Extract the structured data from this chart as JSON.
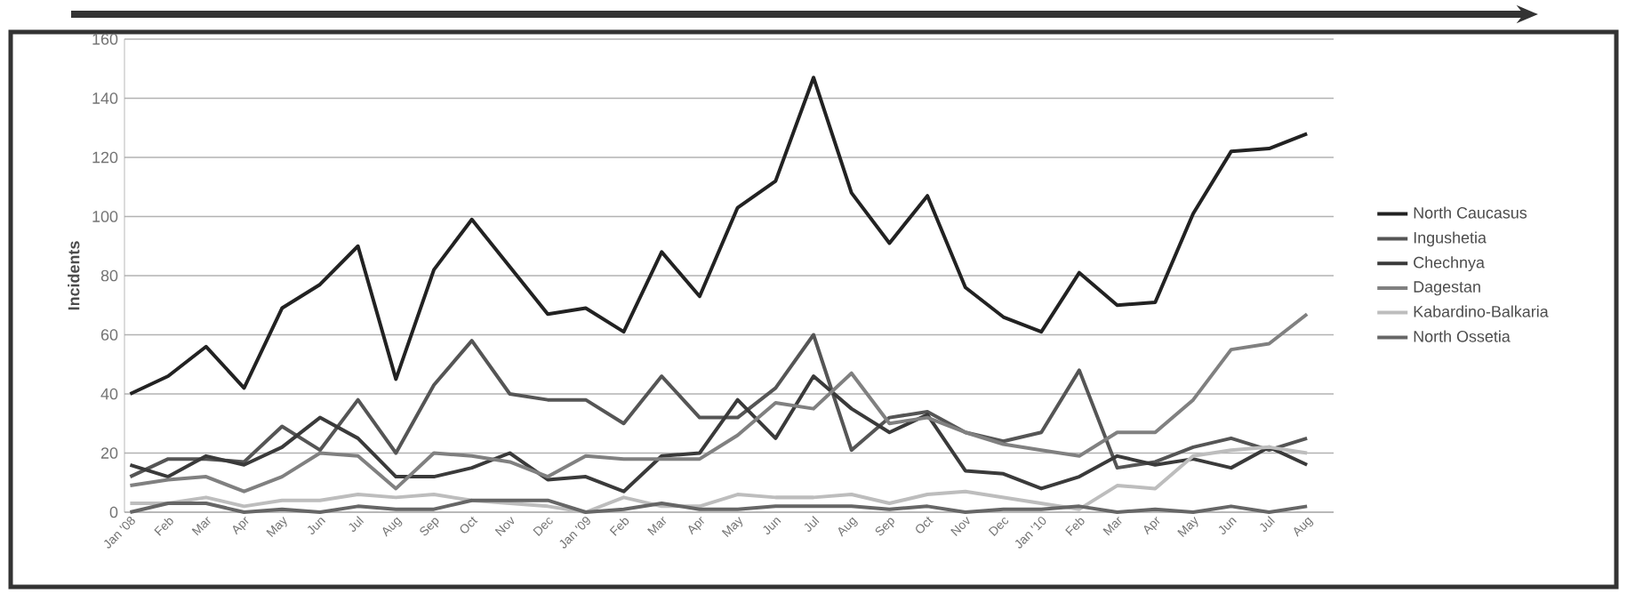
{
  "chart_data": {
    "type": "line",
    "ylabel": "Incidents",
    "categories": [
      "Jan '08",
      "Feb",
      "Mar",
      "Apr",
      "May",
      "Jun",
      "Jul",
      "Aug",
      "Sep",
      "Oct",
      "Nov",
      "Dec",
      "Jan '09",
      "Feb",
      "Mar",
      "Apr",
      "May",
      "Jun",
      "Jul",
      "Aug",
      "Sep",
      "Oct",
      "Nov",
      "Dec",
      "Jan '10",
      "Feb",
      "Mar",
      "Apr",
      "May",
      "Jun",
      "Jul",
      "Aug"
    ],
    "ylim": [
      0,
      160
    ],
    "yticks": [
      0,
      20,
      40,
      60,
      80,
      100,
      120,
      140,
      160
    ],
    "grid": "y",
    "legend": "right",
    "marker": "none",
    "line_style": "solid",
    "series": [
      {
        "name": "North Caucasus",
        "color": "#222222",
        "values": [
          40,
          46,
          56,
          42,
          69,
          77,
          90,
          45,
          82,
          99,
          83,
          67,
          69,
          61,
          88,
          73,
          103,
          112,
          147,
          108,
          91,
          107,
          76,
          66,
          61,
          81,
          70,
          71,
          101,
          122,
          123,
          128
        ]
      },
      {
        "name": "Ingushetia",
        "color": "#555555",
        "values": [
          12,
          18,
          18,
          17,
          29,
          21,
          38,
          20,
          43,
          58,
          40,
          38,
          38,
          30,
          46,
          32,
          32,
          42,
          60,
          21,
          32,
          34,
          27,
          24,
          27,
          48,
          15,
          17,
          22,
          25,
          21,
          25
        ]
      },
      {
        "name": "Chechnya",
        "color": "#3a3a3a",
        "values": [
          16,
          12,
          19,
          16,
          22,
          32,
          25,
          12,
          12,
          15,
          20,
          11,
          12,
          7,
          19,
          20,
          38,
          25,
          46,
          35,
          27,
          33,
          14,
          13,
          8,
          12,
          19,
          16,
          18,
          15,
          22,
          16
        ]
      },
      {
        "name": "Dagestan",
        "color": "#808080",
        "values": [
          9,
          11,
          12,
          7,
          12,
          20,
          19,
          8,
          20,
          19,
          17,
          12,
          19,
          18,
          18,
          18,
          26,
          37,
          35,
          47,
          30,
          32,
          27,
          23,
          21,
          19,
          27,
          27,
          38,
          55,
          57,
          67
        ]
      },
      {
        "name": "Kabardino-Balkaria",
        "color": "#bdbdbd",
        "values": [
          3,
          3,
          5,
          2,
          4,
          4,
          6,
          5,
          6,
          4,
          3,
          2,
          0,
          5,
          2,
          2,
          6,
          5,
          5,
          6,
          3,
          6,
          7,
          5,
          3,
          1,
          9,
          8,
          19,
          21,
          22,
          20
        ]
      },
      {
        "name": "North Ossetia",
        "color": "#666666",
        "values": [
          0,
          3,
          3,
          0,
          1,
          0,
          2,
          1,
          1,
          4,
          4,
          4,
          0,
          1,
          3,
          1,
          1,
          2,
          2,
          2,
          1,
          2,
          0,
          1,
          1,
          2,
          0,
          1,
          0,
          2,
          0,
          2
        ]
      }
    ]
  }
}
